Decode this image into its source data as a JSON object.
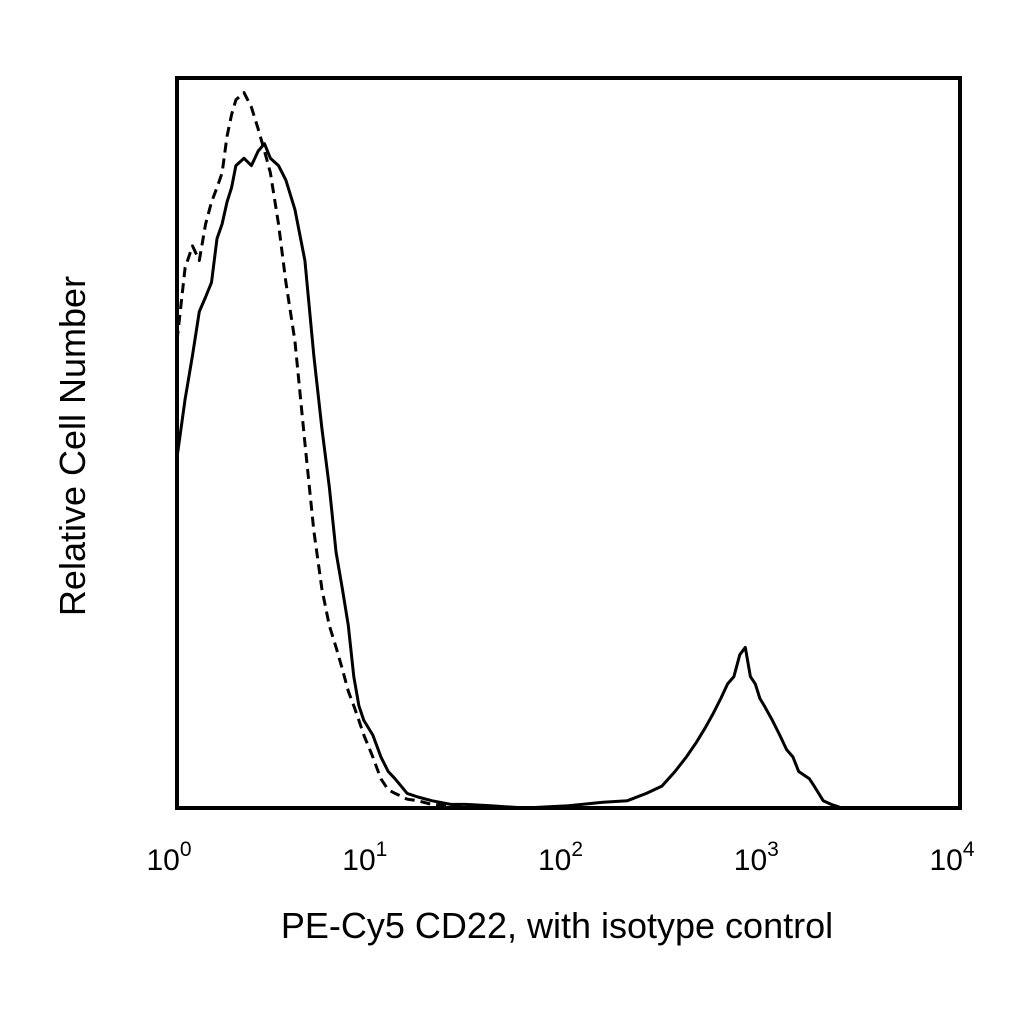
{
  "chart_data": {
    "type": "line",
    "title": "",
    "xlabel": "PE-Cy5 CD22, with isotype control",
    "ylabel": "Relative Cell Number",
    "x_scale": "log",
    "xlim": [
      1,
      10000
    ],
    "ylim": [
      0,
      100
    ],
    "grid": false,
    "y_ticks_shown": false,
    "x_ticks": [
      {
        "base": "10",
        "exp": "0",
        "value": 1
      },
      {
        "base": "10",
        "exp": "1",
        "value": 10
      },
      {
        "base": "10",
        "exp": "2",
        "value": 100
      },
      {
        "base": "10",
        "exp": "3",
        "value": 1000
      },
      {
        "base": "10",
        "exp": "4",
        "value": 10000
      }
    ],
    "series": [
      {
        "style": "solid",
        "color": "#000000",
        "points": [
          [
            1.0,
            48
          ],
          [
            1.1,
            56
          ],
          [
            1.2,
            62
          ],
          [
            1.3,
            68
          ],
          [
            1.4,
            70
          ],
          [
            1.5,
            72
          ],
          [
            1.6,
            78
          ],
          [
            1.7,
            80
          ],
          [
            1.8,
            83
          ],
          [
            1.9,
            85
          ],
          [
            2.0,
            88
          ],
          [
            2.2,
            89
          ],
          [
            2.4,
            88
          ],
          [
            2.6,
            90
          ],
          [
            2.8,
            91
          ],
          [
            3.0,
            89
          ],
          [
            3.3,
            88
          ],
          [
            3.6,
            86
          ],
          [
            4.0,
            82
          ],
          [
            4.5,
            75
          ],
          [
            5.0,
            62
          ],
          [
            5.5,
            52
          ],
          [
            6.0,
            44
          ],
          [
            6.5,
            35
          ],
          [
            7.0,
            30
          ],
          [
            7.5,
            25
          ],
          [
            8.0,
            18
          ],
          [
            8.5,
            14
          ],
          [
            9.0,
            12
          ],
          [
            10.0,
            10
          ],
          [
            11,
            7
          ],
          [
            12,
            5
          ],
          [
            13,
            4
          ],
          [
            15,
            2
          ],
          [
            17,
            1.5
          ],
          [
            20,
            1
          ],
          [
            25,
            0.5
          ],
          [
            30,
            0.5
          ],
          [
            40,
            0.3
          ],
          [
            60,
            0
          ],
          [
            100,
            0.3
          ],
          [
            150,
            0.8
          ],
          [
            200,
            1
          ],
          [
            250,
            2
          ],
          [
            300,
            3
          ],
          [
            350,
            5
          ],
          [
            400,
            7
          ],
          [
            450,
            9
          ],
          [
            500,
            11
          ],
          [
            550,
            13
          ],
          [
            600,
            15
          ],
          [
            650,
            17
          ],
          [
            700,
            18
          ],
          [
            750,
            21
          ],
          [
            800,
            22
          ],
          [
            850,
            18
          ],
          [
            900,
            17
          ],
          [
            950,
            15
          ],
          [
            1000,
            14
          ],
          [
            1100,
            12
          ],
          [
            1200,
            10
          ],
          [
            1300,
            8
          ],
          [
            1400,
            7
          ],
          [
            1500,
            5
          ],
          [
            1700,
            4
          ],
          [
            1800,
            3
          ],
          [
            2000,
            1
          ],
          [
            2200,
            0.5
          ],
          [
            2500,
            0
          ]
        ]
      },
      {
        "style": "dashed",
        "color": "#000000",
        "points": [
          [
            1.0,
            64
          ],
          [
            1.1,
            74
          ],
          [
            1.2,
            77
          ],
          [
            1.3,
            75
          ],
          [
            1.4,
            80
          ],
          [
            1.5,
            83
          ],
          [
            1.6,
            85
          ],
          [
            1.7,
            87
          ],
          [
            1.8,
            92
          ],
          [
            1.9,
            95
          ],
          [
            2.0,
            97
          ],
          [
            2.2,
            98
          ],
          [
            2.4,
            96
          ],
          [
            2.6,
            93
          ],
          [
            2.8,
            90
          ],
          [
            3.0,
            87
          ],
          [
            3.3,
            80
          ],
          [
            3.6,
            72
          ],
          [
            4.0,
            64
          ],
          [
            4.5,
            50
          ],
          [
            5.0,
            38
          ],
          [
            5.5,
            30
          ],
          [
            6.0,
            25
          ],
          [
            6.5,
            22
          ],
          [
            7.0,
            19
          ],
          [
            7.5,
            16
          ],
          [
            8.0,
            14
          ],
          [
            8.5,
            12
          ],
          [
            9.0,
            10
          ],
          [
            10.0,
            7
          ],
          [
            11,
            4
          ],
          [
            12,
            2.5
          ],
          [
            13,
            2
          ],
          [
            15,
            1.2
          ],
          [
            17,
            1
          ],
          [
            20,
            0.5
          ],
          [
            25,
            0.3
          ],
          [
            30,
            0
          ],
          [
            60,
            0
          ],
          [
            100,
            0
          ]
        ]
      }
    ]
  }
}
